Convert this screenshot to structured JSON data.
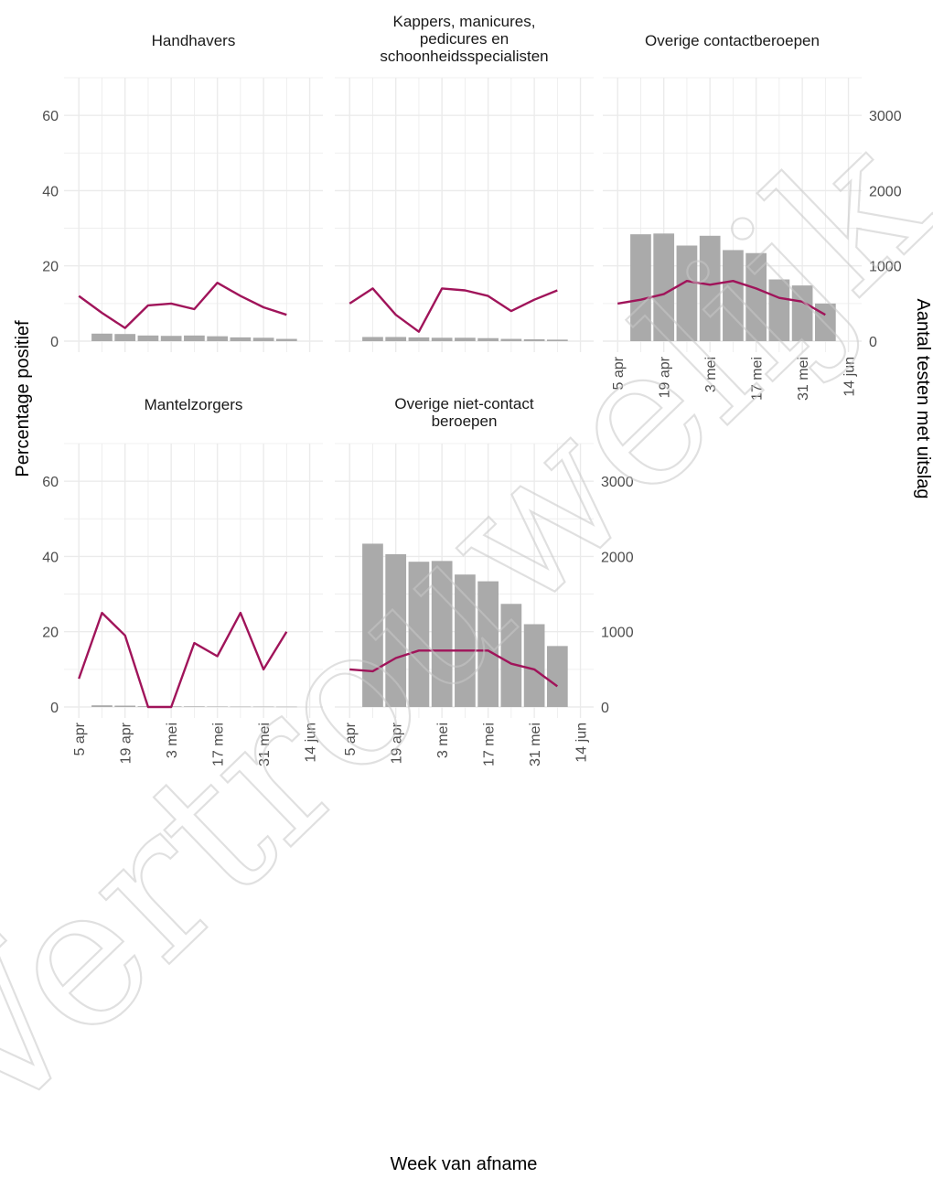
{
  "axis": {
    "y_left_label": "Percentage positief",
    "y_right_label": "Aantal testen met uitslag",
    "x_label": "Week van afname"
  },
  "watermark": "Vertrouwelijk",
  "colors": {
    "line": "#A0145A",
    "bar": "#AAAAAA",
    "grid": "#EBEBEB",
    "text": "#4D4D4D"
  },
  "chart_data": [
    {
      "type": "bar",
      "title_lines": [
        "Handhavers"
      ],
      "x": [
        "5 apr",
        "12 apr",
        "19 apr",
        "26 apr",
        "3 mei",
        "10 mei",
        "17 mei",
        "24 mei",
        "31 mei",
        "7 jun"
      ],
      "series": [
        {
          "axis": "left",
          "values": [
            12,
            7.5,
            3.5,
            9.5,
            10,
            8.5,
            15.5,
            12,
            9,
            7
          ]
        },
        {
          "axis": "right",
          "values": [
            null,
            100,
            95,
            75,
            70,
            75,
            65,
            50,
            45,
            30
          ]
        }
      ],
      "ylim_left": [
        0,
        70
      ],
      "ylim_right": [
        0,
        3500
      ],
      "yticks_left": [
        "0",
        "20",
        "40",
        "60"
      ],
      "yticks_right": [],
      "xticks": [
        "5 apr",
        "19 apr",
        "3 mei",
        "17 mei",
        "31 mei",
        "14 jun"
      ],
      "show_xticks": false
    },
    {
      "type": "bar",
      "title_lines": [
        "Kappers, manicures,",
        "pedicures en",
        "schoonheidsspecialisten"
      ],
      "x": [
        "5 apr",
        "12 apr",
        "19 apr",
        "26 apr",
        "3 mei",
        "10 mei",
        "17 mei",
        "24 mei",
        "31 mei",
        "7 jun"
      ],
      "series": [
        {
          "axis": "left",
          "values": [
            10,
            14,
            7,
            2.5,
            14,
            13.5,
            12,
            8,
            11,
            13.5
          ]
        },
        {
          "axis": "right",
          "values": [
            null,
            55,
            55,
            50,
            45,
            45,
            40,
            30,
            25,
            20
          ]
        }
      ],
      "ylim_left": [
        0,
        70
      ],
      "ylim_right": [
        0,
        3500
      ],
      "yticks_left": [],
      "yticks_right": [],
      "xticks": [
        "5 apr",
        "19 apr",
        "3 mei",
        "17 mei",
        "31 mei",
        "14 jun"
      ],
      "show_xticks": false
    },
    {
      "type": "bar",
      "title_lines": [
        "Overige contactberoepen"
      ],
      "x": [
        "5 apr",
        "12 apr",
        "19 apr",
        "26 apr",
        "3 mei",
        "10 mei",
        "17 mei",
        "24 mei",
        "31 mei",
        "7 jun"
      ],
      "series": [
        {
          "axis": "left",
          "values": [
            10,
            11,
            12.5,
            16,
            15,
            16,
            14,
            11.5,
            10.5,
            7
          ]
        },
        {
          "axis": "right",
          "values": [
            null,
            1420,
            1430,
            1270,
            1400,
            1210,
            1170,
            820,
            740,
            500
          ]
        }
      ],
      "ylim_left": [
        0,
        70
      ],
      "ylim_right": [
        0,
        3500
      ],
      "yticks_left": [],
      "yticks_right": [
        "0",
        "1000",
        "2000",
        "3000"
      ],
      "xticks": [
        "5 apr",
        "19 apr",
        "3 mei",
        "17 mei",
        "31 mei",
        "14 jun"
      ],
      "show_xticks": true
    },
    {
      "type": "bar",
      "title_lines": [
        "Mantelzorgers"
      ],
      "x": [
        "5 apr",
        "12 apr",
        "19 apr",
        "26 apr",
        "3 mei",
        "10 mei",
        "17 mei",
        "24 mei",
        "31 mei",
        "7 jun"
      ],
      "series": [
        {
          "axis": "left",
          "values": [
            7.5,
            25,
            19,
            0,
            0,
            17,
            13.5,
            25,
            10,
            20
          ]
        },
        {
          "axis": "right",
          "values": [
            null,
            22,
            18,
            10,
            8,
            8,
            6,
            5,
            5,
            4
          ]
        }
      ],
      "ylim_left": [
        0,
        70
      ],
      "ylim_right": [
        0,
        3500
      ],
      "yticks_left": [
        "0",
        "20",
        "40",
        "60"
      ],
      "yticks_right": [],
      "xticks": [
        "5 apr",
        "19 apr",
        "3 mei",
        "17 mei",
        "31 mei",
        "14 jun"
      ],
      "show_xticks": true
    },
    {
      "type": "bar",
      "title_lines": [
        "Overige niet-contact",
        "beroepen"
      ],
      "x": [
        "5 apr",
        "12 apr",
        "19 apr",
        "26 apr",
        "3 mei",
        "10 mei",
        "17 mei",
        "24 mei",
        "31 mei",
        "7 jun"
      ],
      "series": [
        {
          "axis": "left",
          "values": [
            10,
            9.5,
            13,
            15,
            15,
            15,
            15,
            11.5,
            10,
            5.5
          ]
        },
        {
          "axis": "right",
          "values": [
            null,
            2170,
            2030,
            1930,
            1940,
            1760,
            1670,
            1370,
            1100,
            810
          ]
        }
      ],
      "ylim_left": [
        0,
        70
      ],
      "ylim_right": [
        0,
        3500
      ],
      "yticks_left": [],
      "yticks_right": [
        "0",
        "1000",
        "2000",
        "3000"
      ],
      "xticks": [
        "5 apr",
        "19 apr",
        "3 mei",
        "17 mei",
        "31 mei",
        "14 jun"
      ],
      "show_xticks": true
    }
  ]
}
